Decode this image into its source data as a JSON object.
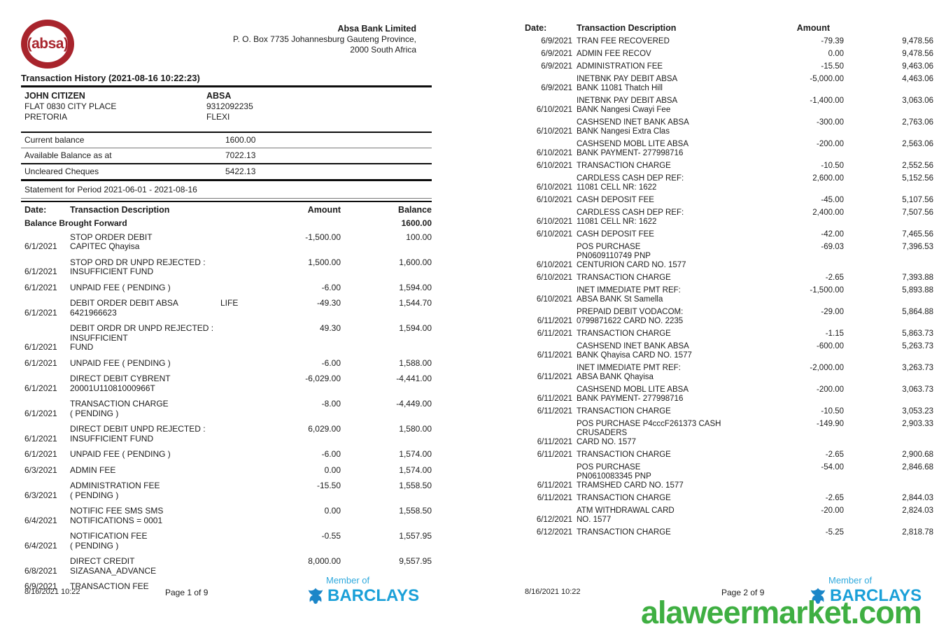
{
  "page1": {
    "logo_text": "(absa)",
    "bank_name": "Absa Bank Limited",
    "bank_address_line1": "P. O. Box 7735 Johannesburg Gauteng Province,",
    "bank_address_line2": "2000 South Africa",
    "title": "Transaction History (2021-08-16 10:22:23)",
    "customer": {
      "name": "JOHN CITIZEN",
      "address1": "FLAT 0830 CITY PLACE",
      "address2": "PRETORIA"
    },
    "account": {
      "bank": "ABSA",
      "number": "9312092235",
      "type": "FLEXI"
    },
    "balances": [
      {
        "label": "Current balance",
        "value": "1600.00"
      },
      {
        "label": "Available Balance as at",
        "value": "7022.13"
      },
      {
        "label": "Uncleared Cheques",
        "value": "5422.13"
      }
    ],
    "statement_period": "Statement for Period 2021-06-01 - 2021-08-16",
    "table": {
      "headers": {
        "date": "Date:",
        "description": "Transaction Description",
        "amount": "Amount",
        "balance": "Balance"
      },
      "opening": {
        "label": "Balance Brought Forward",
        "balance": "1600.00"
      },
      "rows": [
        {
          "date": "6/1/2021",
          "desc": [
            "STOP ORDER DEBIT",
            "CAPITEC Qhayisa"
          ],
          "amount": "-1,500.00",
          "balance": "100.00"
        },
        {
          "date": "6/1/2021",
          "desc": [
            "STOP ORD DR UNPD REJECTED :",
            "INSUFFICIENT FUND"
          ],
          "amount": "1,500.00",
          "balance": "1,600.00"
        },
        {
          "date": "6/1/2021",
          "desc": [
            "UNPAID FEE ( PENDING )"
          ],
          "amount": "-6.00",
          "balance": "1,594.00"
        },
        {
          "date": "6/1/2021",
          "desc": [
            "DEBIT ORDER DEBIT ABSA",
            "6421966623"
          ],
          "tag": "LIFE",
          "amount": "-49.30",
          "balance": "1,544.70"
        },
        {
          "date": "6/1/2021",
          "desc": [
            "DEBIT ORDR DR UNPD REJECTED : INSUFFICIENT",
            "FUND"
          ],
          "amount": "49.30",
          "balance": "1,594.00"
        },
        {
          "date": "6/1/2021",
          "desc": [
            "UNPAID FEE ( PENDING )"
          ],
          "amount": "-6.00",
          "balance": "1,588.00"
        },
        {
          "date": "6/1/2021",
          "desc": [
            "DIRECT DEBIT CYBRENT",
            "20001U11081000966T"
          ],
          "amount": "-6,029.00",
          "balance": "-4,441.00"
        },
        {
          "date": "6/1/2021",
          "desc": [
            "TRANSACTION CHARGE",
            "( PENDING )"
          ],
          "amount": "-8.00",
          "balance": "-4,449.00"
        },
        {
          "date": "6/1/2021",
          "desc": [
            "DIRECT DEBIT UNPD REJECTED :",
            "INSUFFICIENT FUND"
          ],
          "amount": "6,029.00",
          "balance": "1,580.00"
        },
        {
          "date": "6/1/2021",
          "desc": [
            "UNPAID FEE ( PENDING )"
          ],
          "amount": "-6.00",
          "balance": "1,574.00"
        },
        {
          "date": "6/3/2021",
          "desc": [
            "ADMIN FEE"
          ],
          "amount": "0.00",
          "balance": "1,574.00"
        },
        {
          "date": "6/3/2021",
          "desc": [
            "ADMINISTRATION FEE",
            "( PENDING )"
          ],
          "amount": "-15.50",
          "balance": "1,558.50"
        },
        {
          "date": "6/4/2021",
          "desc": [
            "NOTIFIC FEE SMS SMS",
            "NOTIFICATIONS = 0001"
          ],
          "amount": "0.00",
          "balance": "1,558.50"
        },
        {
          "date": "6/4/2021",
          "desc": [
            "NOTIFICATION FEE",
            "( PENDING )"
          ],
          "amount": "-0.55",
          "balance": "1,557.95"
        },
        {
          "date": "6/8/2021",
          "desc": [
            "DIRECT CREDIT",
            "SIZASANA_ADVANCE"
          ],
          "amount": "8,000.00",
          "balance": "9,557.95"
        },
        {
          "date": "6/9/2021",
          "desc": [
            "TRANSACTION FEE"
          ],
          "amount": "",
          "balance": ""
        }
      ]
    },
    "footer": {
      "timestamp": "8/16/2021 10:22",
      "page": "Page 1 of 9",
      "member_of": "Member of",
      "member_name": "BARCLAYS"
    }
  },
  "page2": {
    "table": {
      "headers": {
        "date": "Date:",
        "description": "Transaction Description",
        "amount": "Amount"
      },
      "rows": [
        {
          "date": "6/9/2021",
          "desc": [
            "TRAN FEE RECOVERED"
          ],
          "amount": "-79.39",
          "balance": "9,478.56"
        },
        {
          "date": "6/9/2021",
          "desc": [
            "ADMIN FEE RECOV"
          ],
          "amount": "0.00",
          "balance": "9,478.56"
        },
        {
          "date": "6/9/2021",
          "desc": [
            "ADMINISTRATION FEE"
          ],
          "amount": "-15.50",
          "balance": "9,463.06"
        },
        {
          "date": "6/9/2021",
          "desc": [
            "INETBNK PAY DEBIT ABSA",
            "BANK 11081 Thatch Hill"
          ],
          "amount": "-5,000.00",
          "balance": "4,463.06"
        },
        {
          "date": "6/10/2021",
          "desc": [
            "INETBNK PAY DEBIT ABSA",
            "BANK Nangesi Cwayi Fee"
          ],
          "amount": "-1,400.00",
          "balance": "3,063.06"
        },
        {
          "date": "6/10/2021",
          "desc": [
            "CASHSEND INET BANK ABSA",
            "BANK Nangesi Extra Clas"
          ],
          "amount": "-300.00",
          "balance": "2,763.06"
        },
        {
          "date": "6/10/2021",
          "desc": [
            "CASHSEND MOBL LITE ABSA",
            "BANK PAYMENT- 277998716"
          ],
          "amount": "-200.00",
          "balance": "2,563.06"
        },
        {
          "date": "6/10/2021",
          "desc": [
            "TRANSACTION CHARGE"
          ],
          "amount": "-10.50",
          "balance": "2,552.56"
        },
        {
          "date": "6/10/2021",
          "desc": [
            "CARDLESS CASH DEP REF:",
            "11081 CELL NR: 1622"
          ],
          "amount": "2,600.00",
          "balance": "5,152.56"
        },
        {
          "date": "6/10/2021",
          "desc": [
            "CASH DEPOSIT FEE"
          ],
          "amount": "-45.00",
          "balance": "5,107.56"
        },
        {
          "date": "6/10/2021",
          "desc": [
            "CARDLESS CASH DEP REF:",
            "11081 CELL NR: 1622"
          ],
          "amount": "2,400.00",
          "balance": "7,507.56"
        },
        {
          "date": "6/10/2021",
          "desc": [
            "CASH DEPOSIT FEE"
          ],
          "amount": "-42.00",
          "balance": "7,465.56"
        },
        {
          "date": "6/10/2021",
          "desc": [
            "POS PURCHASE",
            "PN0609110749 PNP",
            "CENTURION CARD NO. 1577"
          ],
          "amount": "-69.03",
          "balance": "7,396.53"
        },
        {
          "date": "6/10/2021",
          "desc": [
            "TRANSACTION CHARGE"
          ],
          "amount": "-2.65",
          "balance": "7,393.88"
        },
        {
          "date": "6/10/2021",
          "desc": [
            "INET IMMEDIATE PMT REF:",
            "ABSA BANK St Samella"
          ],
          "amount": "-1,500.00",
          "balance": "5,893.88"
        },
        {
          "date": "6/11/2021",
          "desc": [
            "PREPAID DEBIT VODACOM:",
            "0799871622 CARD NO. 2235"
          ],
          "amount": "-29.00",
          "balance": "5,864.88"
        },
        {
          "date": "6/11/2021",
          "desc": [
            "TRANSACTION CHARGE"
          ],
          "amount": "-1.15",
          "balance": "5,863.73"
        },
        {
          "date": "6/11/2021",
          "desc": [
            "CASHSEND INET BANK ABSA",
            "BANK Qhayisa CARD NO. 1577"
          ],
          "amount": "-600.00",
          "balance": "5,263.73"
        },
        {
          "date": "6/11/2021",
          "desc": [
            "INET IMMEDIATE PMT REF:",
            "ABSA BANK Qhayisa"
          ],
          "amount": "-2,000.00",
          "balance": "3,263.73"
        },
        {
          "date": "6/11/2021",
          "desc": [
            "CASHSEND MOBL LITE ABSA",
            "BANK PAYMENT- 277998716"
          ],
          "amount": "-200.00",
          "balance": "3,063.73"
        },
        {
          "date": "6/11/2021",
          "desc": [
            "TRANSACTION CHARGE"
          ],
          "amount": "-10.50",
          "balance": "3,053.23"
        },
        {
          "date": "6/11/2021",
          "desc": [
            "POS PURCHASE P4cccF261373 CASH CRUSADERS",
            "CARD NO. 1577"
          ],
          "amount": "-149.90",
          "balance": "2,903.33"
        },
        {
          "date": "6/11/2021",
          "desc": [
            "TRANSACTION CHARGE"
          ],
          "amount": "-2.65",
          "balance": "2,900.68"
        },
        {
          "date": "6/11/2021",
          "desc": [
            "POS PURCHASE",
            "PN0610083345 PNP",
            "TRAMSHED CARD NO. 1577"
          ],
          "amount": "-54.00",
          "balance": "2,846.68"
        },
        {
          "date": "6/11/2021",
          "desc": [
            "TRANSACTION CHARGE"
          ],
          "amount": "-2.65",
          "balance": "2,844.03"
        },
        {
          "date": "6/12/2021",
          "desc": [
            "ATM WITHDRAWAL CARD",
            "NO. 1577"
          ],
          "amount": "-20.00",
          "balance": "2,824.03"
        },
        {
          "date": "6/12/2021",
          "desc": [
            "TRANSACTION CHARGE"
          ],
          "amount": "-5.25",
          "balance": "2,818.78"
        }
      ]
    },
    "footer": {
      "timestamp": "8/16/2021 10:22",
      "page": "Page 2 of 9",
      "member_of": "Member of",
      "member_name": "BARCLAYS"
    }
  },
  "watermark": "alaweermarket.com",
  "colors": {
    "absa_red": "#a8242c",
    "barclays_blue": "#1ba0d8",
    "watermark_green": "#3faf42"
  }
}
